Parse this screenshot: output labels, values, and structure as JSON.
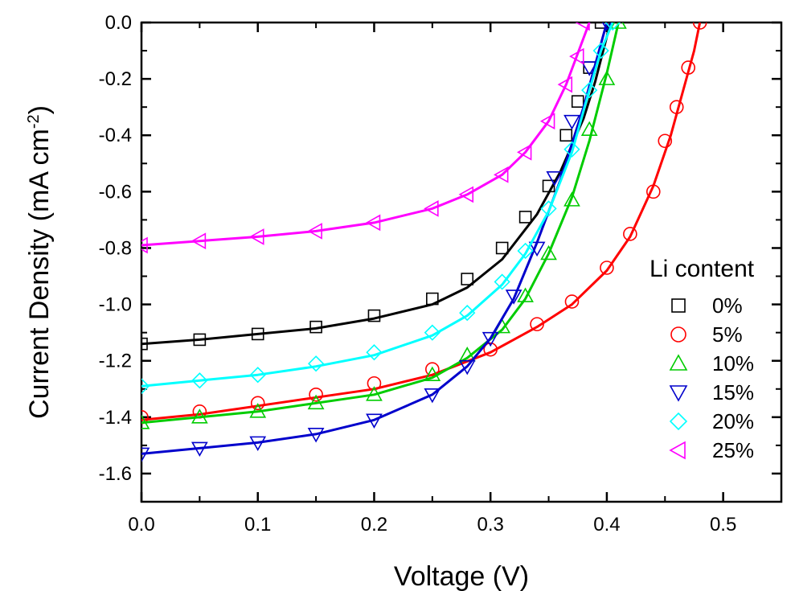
{
  "chart_data": {
    "type": "line",
    "title": "",
    "xlabel": "Voltage (V)",
    "ylabel": {
      "main": "Current Density (mA cm",
      "superscript": "-2",
      "close": ")"
    },
    "xlim": [
      0.0,
      0.55
    ],
    "ylim": [
      -1.7,
      0.0
    ],
    "x_ticks": [
      "0.0",
      "0.1",
      "0.2",
      "0.3",
      "0.4",
      "0.5"
    ],
    "y_ticks": [
      "0.0",
      "-0.2",
      "-0.4",
      "-0.6",
      "-0.8",
      "-1.0",
      "-1.2",
      "-1.4",
      "-1.6"
    ],
    "grid": false,
    "legend": {
      "title": "Li content",
      "placement": "right"
    },
    "series": [
      {
        "name": "0%",
        "color": "#000000",
        "marker": "square",
        "fit": [
          [
            0.0,
            -1.14
          ],
          [
            0.05,
            -1.125
          ],
          [
            0.1,
            -1.105
          ],
          [
            0.15,
            -1.085
          ],
          [
            0.2,
            -1.05
          ],
          [
            0.25,
            -1.0
          ],
          [
            0.28,
            -0.94
          ],
          [
            0.31,
            -0.84
          ],
          [
            0.34,
            -0.68
          ],
          [
            0.36,
            -0.53
          ],
          [
            0.38,
            -0.34
          ],
          [
            0.39,
            -0.21
          ],
          [
            0.4,
            -0.05
          ],
          [
            0.403,
            0.0
          ]
        ],
        "points": [
          [
            0.0,
            -1.14
          ],
          [
            0.05,
            -1.125
          ],
          [
            0.1,
            -1.105
          ],
          [
            0.15,
            -1.08
          ],
          [
            0.2,
            -1.04
          ],
          [
            0.25,
            -0.98
          ],
          [
            0.28,
            -0.91
          ],
          [
            0.31,
            -0.8
          ],
          [
            0.33,
            -0.69
          ],
          [
            0.35,
            -0.58
          ],
          [
            0.365,
            -0.4
          ],
          [
            0.375,
            -0.28
          ],
          [
            0.385,
            -0.16
          ],
          [
            0.395,
            0.0
          ]
        ]
      },
      {
        "name": "5%",
        "color": "#ff0000",
        "marker": "circle",
        "fit": [
          [
            0.0,
            -1.41
          ],
          [
            0.05,
            -1.39
          ],
          [
            0.1,
            -1.36
          ],
          [
            0.15,
            -1.33
          ],
          [
            0.2,
            -1.3
          ],
          [
            0.25,
            -1.25
          ],
          [
            0.3,
            -1.17
          ],
          [
            0.34,
            -1.08
          ],
          [
            0.37,
            -1.0
          ],
          [
            0.4,
            -0.88
          ],
          [
            0.42,
            -0.76
          ],
          [
            0.44,
            -0.58
          ],
          [
            0.455,
            -0.4
          ],
          [
            0.465,
            -0.25
          ],
          [
            0.475,
            -0.1
          ],
          [
            0.48,
            0.0
          ]
        ],
        "points": [
          [
            0.0,
            -1.4
          ],
          [
            0.05,
            -1.38
          ],
          [
            0.1,
            -1.35
          ],
          [
            0.15,
            -1.32
          ],
          [
            0.2,
            -1.28
          ],
          [
            0.25,
            -1.23
          ],
          [
            0.3,
            -1.16
          ],
          [
            0.34,
            -1.07
          ],
          [
            0.37,
            -0.99
          ],
          [
            0.4,
            -0.87
          ],
          [
            0.42,
            -0.75
          ],
          [
            0.44,
            -0.6
          ],
          [
            0.45,
            -0.42
          ],
          [
            0.46,
            -0.3
          ],
          [
            0.47,
            -0.16
          ],
          [
            0.48,
            0.0
          ]
        ]
      },
      {
        "name": "10%",
        "color": "#00cc00",
        "marker": "triangle-up",
        "fit": [
          [
            0.0,
            -1.42
          ],
          [
            0.05,
            -1.4
          ],
          [
            0.1,
            -1.38
          ],
          [
            0.15,
            -1.35
          ],
          [
            0.2,
            -1.32
          ],
          [
            0.25,
            -1.26
          ],
          [
            0.28,
            -1.19
          ],
          [
            0.31,
            -1.09
          ],
          [
            0.33,
            -0.98
          ],
          [
            0.35,
            -0.82
          ],
          [
            0.37,
            -0.62
          ],
          [
            0.385,
            -0.42
          ],
          [
            0.4,
            -0.18
          ],
          [
            0.41,
            0.0
          ]
        ],
        "points": [
          [
            0.0,
            -1.42
          ],
          [
            0.05,
            -1.4
          ],
          [
            0.1,
            -1.38
          ],
          [
            0.15,
            -1.35
          ],
          [
            0.2,
            -1.32
          ],
          [
            0.25,
            -1.25
          ],
          [
            0.28,
            -1.18
          ],
          [
            0.31,
            -1.08
          ],
          [
            0.33,
            -0.97
          ],
          [
            0.35,
            -0.82
          ],
          [
            0.37,
            -0.63
          ],
          [
            0.385,
            -0.38
          ],
          [
            0.4,
            -0.2
          ],
          [
            0.41,
            0.0
          ]
        ]
      },
      {
        "name": "15%",
        "color": "#0000cc",
        "marker": "triangle-down",
        "fit": [
          [
            0.0,
            -1.53
          ],
          [
            0.05,
            -1.51
          ],
          [
            0.1,
            -1.49
          ],
          [
            0.15,
            -1.46
          ],
          [
            0.2,
            -1.41
          ],
          [
            0.25,
            -1.32
          ],
          [
            0.28,
            -1.22
          ],
          [
            0.3,
            -1.12
          ],
          [
            0.32,
            -0.98
          ],
          [
            0.34,
            -0.78
          ],
          [
            0.36,
            -0.56
          ],
          [
            0.38,
            -0.3
          ],
          [
            0.4,
            0.0
          ]
        ],
        "points": [
          [
            0.0,
            -1.53
          ],
          [
            0.05,
            -1.51
          ],
          [
            0.1,
            -1.49
          ],
          [
            0.15,
            -1.46
          ],
          [
            0.2,
            -1.41
          ],
          [
            0.25,
            -1.32
          ],
          [
            0.28,
            -1.22
          ],
          [
            0.3,
            -1.12
          ],
          [
            0.32,
            -0.97
          ],
          [
            0.34,
            -0.8
          ],
          [
            0.355,
            -0.55
          ],
          [
            0.37,
            -0.35
          ],
          [
            0.385,
            -0.16
          ],
          [
            0.4,
            0.0
          ]
        ]
      },
      {
        "name": "20%",
        "color": "#00ffff",
        "marker": "diamond",
        "fit": [
          [
            0.0,
            -1.29
          ],
          [
            0.05,
            -1.27
          ],
          [
            0.1,
            -1.25
          ],
          [
            0.15,
            -1.22
          ],
          [
            0.2,
            -1.18
          ],
          [
            0.25,
            -1.11
          ],
          [
            0.28,
            -1.04
          ],
          [
            0.31,
            -0.93
          ],
          [
            0.33,
            -0.82
          ],
          [
            0.35,
            -0.67
          ],
          [
            0.37,
            -0.46
          ],
          [
            0.385,
            -0.24
          ],
          [
            0.395,
            -0.1
          ],
          [
            0.405,
            0.0
          ]
        ],
        "points": [
          [
            0.0,
            -1.29
          ],
          [
            0.05,
            -1.27
          ],
          [
            0.1,
            -1.25
          ],
          [
            0.15,
            -1.21
          ],
          [
            0.2,
            -1.17
          ],
          [
            0.25,
            -1.1
          ],
          [
            0.28,
            -1.03
          ],
          [
            0.31,
            -0.92
          ],
          [
            0.33,
            -0.81
          ],
          [
            0.35,
            -0.66
          ],
          [
            0.37,
            -0.45
          ],
          [
            0.385,
            -0.24
          ],
          [
            0.395,
            -0.1
          ],
          [
            0.405,
            0.0
          ]
        ]
      },
      {
        "name": "25%",
        "color": "#ff00ff",
        "marker": "triangle-left",
        "fit": [
          [
            0.0,
            -0.79
          ],
          [
            0.05,
            -0.775
          ],
          [
            0.1,
            -0.76
          ],
          [
            0.15,
            -0.74
          ],
          [
            0.2,
            -0.71
          ],
          [
            0.25,
            -0.66
          ],
          [
            0.28,
            -0.61
          ],
          [
            0.31,
            -0.54
          ],
          [
            0.33,
            -0.46
          ],
          [
            0.35,
            -0.35
          ],
          [
            0.365,
            -0.22
          ],
          [
            0.375,
            -0.11
          ],
          [
            0.385,
            0.0
          ]
        ],
        "points": [
          [
            0.0,
            -0.79
          ],
          [
            0.05,
            -0.775
          ],
          [
            0.1,
            -0.76
          ],
          [
            0.15,
            -0.74
          ],
          [
            0.2,
            -0.71
          ],
          [
            0.25,
            -0.66
          ],
          [
            0.28,
            -0.61
          ],
          [
            0.31,
            -0.54
          ],
          [
            0.33,
            -0.46
          ],
          [
            0.35,
            -0.35
          ],
          [
            0.365,
            -0.22
          ],
          [
            0.375,
            -0.12
          ],
          [
            0.38,
            0.0
          ]
        ]
      }
    ]
  }
}
